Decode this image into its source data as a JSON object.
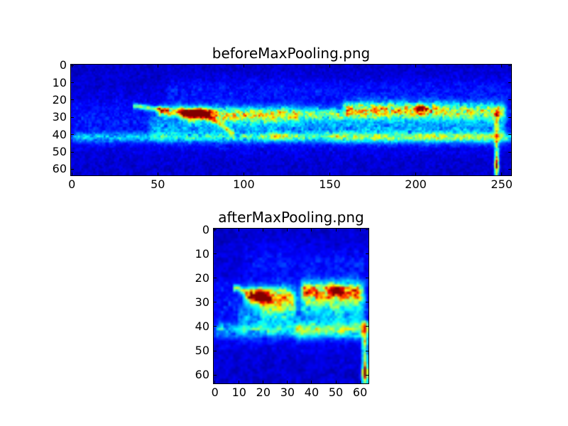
{
  "figure": {
    "background": "#ffffff",
    "text_color": "#000000",
    "axis_color": "#000000"
  },
  "chart_data": {
    "type": "heatmap",
    "colormap": "jet",
    "colormap_anchors": [
      "#000080",
      "#0000ff",
      "#00ffff",
      "#ffff00",
      "#ff0000",
      "#800000"
    ],
    "grid": false,
    "plots": [
      {
        "title": "beforeMaxPooling.png",
        "grid": {
          "cols": 256,
          "rows": 64
        },
        "x_ticks": [
          0,
          50,
          100,
          150,
          200,
          250
        ],
        "y_ticks": [
          0,
          10,
          20,
          30,
          40,
          50,
          60
        ],
        "x_range": [
          0,
          255
        ],
        "y_range": [
          0,
          63
        ],
        "description": "Spectrogram-like intensity map, dark blue background, active horizontal band around rows 23-31 from col ~40 onward with red hot spots near (row 27, col 73) and (row 25, col 203), weaker speckled band near row 41, faint vertical streak at col ~247",
        "features": [
          {
            "type": "noise",
            "base": 0.03,
            "amp": 0.09
          },
          {
            "type": "hband",
            "row": 33,
            "sigma": 11,
            "c0": 0,
            "c1": 256,
            "amp": 0.085,
            "spk": 0.7
          },
          {
            "type": "hband",
            "row": 14,
            "sigma": 5,
            "c0": 55,
            "c1": 256,
            "amp": 0.06,
            "spk": 0.7
          },
          {
            "type": "line",
            "r0": 23.5,
            "c0": 37,
            "r1": 26,
            "c1": 55,
            "sigma": 1.0,
            "amp": 0.45,
            "spk": 0.4
          },
          {
            "type": "hband",
            "row": 26.5,
            "sigma": 2.2,
            "c0": 50,
            "c1": 65,
            "amp": 0.5,
            "spk": 0.6
          },
          {
            "type": "blob",
            "row": 27.5,
            "col": 73,
            "rsig": 1.7,
            "csig": 5.5,
            "amp": 1.1,
            "spk": 0.2
          },
          {
            "type": "hband",
            "row": 28.5,
            "sigma": 3.0,
            "c0": 64,
            "c1": 132,
            "amp": 0.5,
            "spk": 0.7
          },
          {
            "type": "hband",
            "row": 28,
            "sigma": 2.6,
            "c0": 132,
            "c1": 158,
            "amp": 0.34,
            "spk": 0.7
          },
          {
            "type": "hband",
            "row": 26,
            "sigma": 3.2,
            "c0": 158,
            "c1": 213,
            "amp": 0.6,
            "spk": 0.7
          },
          {
            "type": "blob",
            "row": 25,
            "col": 203,
            "rsig": 1.2,
            "csig": 1.8,
            "amp": 0.95,
            "spk": 0.2
          },
          {
            "type": "hband",
            "row": 26.5,
            "sigma": 3.4,
            "c0": 213,
            "c1": 252,
            "amp": 0.45,
            "spk": 0.7
          },
          {
            "type": "line",
            "r0": 29,
            "c0": 79,
            "r1": 39,
            "c1": 93,
            "sigma": 1.4,
            "amp": 0.3,
            "spk": 0.5
          },
          {
            "type": "hband",
            "row": 36,
            "sigma": 5.5,
            "c0": 45,
            "c1": 252,
            "amp": 0.15,
            "spk": 0.8
          },
          {
            "type": "hband",
            "row": 41.5,
            "sigma": 1.9,
            "c0": 0,
            "c1": 256,
            "amp": 0.24,
            "spk": 0.75
          },
          {
            "type": "hband",
            "row": 41.5,
            "sigma": 2.2,
            "c0": 150,
            "c1": 252,
            "amp": 0.16,
            "spk": 0.75
          },
          {
            "type": "blob",
            "row": 41,
            "col": 121,
            "rsig": 1.6,
            "csig": 7,
            "amp": 0.22,
            "spk": 0.5
          },
          {
            "type": "vline",
            "col": 247,
            "r0": 24,
            "r1": 64,
            "sigma": 0.9,
            "amp": 0.42,
            "spk": 0.5
          },
          {
            "type": "blob",
            "row": 57,
            "col": 247,
            "rsig": 3.5,
            "csig": 0.9,
            "amp": 0.5,
            "spk": 0.3
          }
        ]
      },
      {
        "title": "afterMaxPooling.png",
        "grid": {
          "cols": 64,
          "rows": 64
        },
        "x_ticks": [
          0,
          10,
          20,
          30,
          40,
          50,
          60
        ],
        "y_ticks": [
          0,
          10,
          20,
          30,
          40,
          50,
          60
        ],
        "x_range": [
          0,
          63
        ],
        "y_range": [
          0,
          63
        ],
        "description": "Max-pooled version: same structure compressed to 64 cols; red hot spots near (row 27, col 19) and (row 25, col 50), speckled band near row 41, vertical streak at col ~62",
        "features": [
          {
            "type": "noise",
            "base": 0.03,
            "amp": 0.09
          },
          {
            "type": "hband",
            "row": 33,
            "sigma": 11,
            "c0": 0,
            "c1": 64,
            "amp": 0.085,
            "spk": 0.7
          },
          {
            "type": "hband",
            "row": 13,
            "sigma": 5,
            "c0": 12,
            "c1": 64,
            "amp": 0.06,
            "spk": 0.7
          },
          {
            "type": "line",
            "r0": 24,
            "c0": 9,
            "r1": 26.5,
            "c1": 14,
            "sigma": 1.0,
            "amp": 0.45,
            "spk": 0.4
          },
          {
            "type": "blob",
            "row": 27.5,
            "col": 19,
            "rsig": 1.6,
            "csig": 2.0,
            "amp": 1.1,
            "spk": 0.2
          },
          {
            "type": "hband",
            "row": 27.5,
            "sigma": 2.6,
            "c0": 13,
            "c1": 33,
            "amp": 0.55,
            "spk": 0.7
          },
          {
            "type": "hband",
            "row": 31.5,
            "sigma": 3.5,
            "c0": 18,
            "c1": 33,
            "amp": 0.28,
            "spk": 0.8
          },
          {
            "type": "hband",
            "row": 25.5,
            "sigma": 2.8,
            "c0": 36,
            "c1": 61,
            "amp": 0.65,
            "spk": 0.65
          },
          {
            "type": "blob",
            "row": 25,
            "col": 50,
            "rsig": 1.2,
            "csig": 1.5,
            "amp": 0.9,
            "spk": 0.25
          },
          {
            "type": "hband",
            "row": 30,
            "sigma": 4,
            "c0": 36,
            "c1": 62,
            "amp": 0.18,
            "spk": 0.8
          },
          {
            "type": "hband",
            "row": 36,
            "sigma": 5,
            "c0": 10,
            "c1": 62,
            "amp": 0.13,
            "spk": 0.8
          },
          {
            "type": "hband",
            "row": 41.5,
            "sigma": 2.0,
            "c0": 0,
            "c1": 64,
            "amp": 0.24,
            "spk": 0.75
          },
          {
            "type": "hband",
            "row": 41.5,
            "sigma": 2.2,
            "c0": 33,
            "c1": 62,
            "amp": 0.18,
            "spk": 0.75
          },
          {
            "type": "vline",
            "col": 62,
            "r0": 38,
            "r1": 64,
            "sigma": 0.8,
            "amp": 0.5,
            "spk": 0.4
          },
          {
            "type": "blob",
            "row": 59,
            "col": 62,
            "rsig": 2,
            "csig": 0.8,
            "amp": 0.6,
            "spk": 0.2
          }
        ]
      }
    ]
  }
}
